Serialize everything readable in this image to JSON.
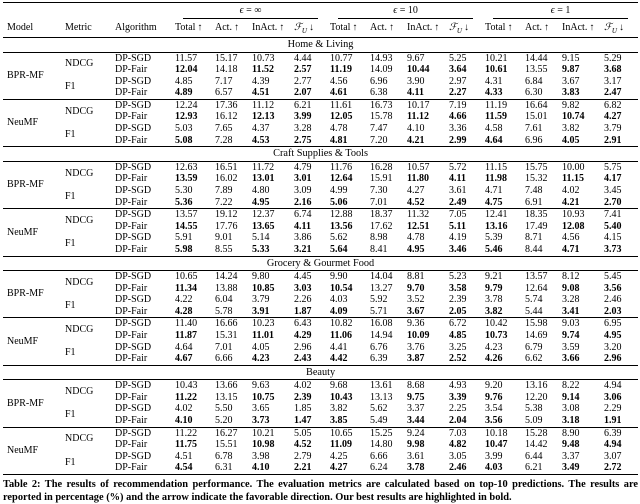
{
  "header": {
    "model": "Model",
    "metric": "Metric",
    "algorithm": "Algorithm",
    "groups": [
      {
        "symbol": "ϵ",
        "rest": "= ∞"
      },
      {
        "symbol": "ϵ",
        "rest": "= 10"
      },
      {
        "symbol": "ϵ",
        "rest": "= 1"
      }
    ],
    "sub_columns": [
      {
        "label": "Total",
        "arrow": "↑"
      },
      {
        "label": "Act.",
        "arrow": "↑"
      },
      {
        "label": "InAct.",
        "arrow": "↑"
      },
      {
        "label": "ℱ",
        "subscript": "U",
        "arrow": "↓"
      }
    ]
  },
  "sections": [
    {
      "title": "Home & Living",
      "rows": [
        {
          "model": "BPR-MF",
          "metric": "NDCG",
          "alg": "DP-SGD",
          "vals": [
            "11.57",
            "15.17",
            "10.73",
            "4.44",
            "10.77",
            "14.93",
            "9.67",
            "5.25",
            "10.21",
            "14.44",
            "9.15",
            "5.29"
          ]
        },
        {
          "alg": "DP-Fair",
          "bold": true,
          "vals": [
            "12.04",
            "14.18",
            "11.52",
            "2.57",
            "11.19",
            "14.09",
            "10.44",
            "3.64",
            "10.61",
            "13.55",
            "9.87",
            "3.68"
          ]
        },
        {
          "metric": "F1",
          "alg": "DP-SGD",
          "vals": [
            "4.85",
            "7.17",
            "4.39",
            "2.77",
            "4.56",
            "6.96",
            "3.90",
            "2.97",
            "4.31",
            "6.84",
            "3.67",
            "3.17"
          ]
        },
        {
          "alg": "DP-Fair",
          "bold": true,
          "vals": [
            "4.89",
            "6.57",
            "4.51",
            "2.07",
            "4.61",
            "6.38",
            "4.11",
            "2.27",
            "4.33",
            "6.30",
            "3.83",
            "2.47"
          ]
        },
        {
          "model": "NeuMF",
          "metric": "NDCG",
          "alg": "DP-SGD",
          "vals": [
            "12.24",
            "17.36",
            "11.12",
            "6.21",
            "11.61",
            "16.73",
            "10.17",
            "7.19",
            "11.19",
            "16.64",
            "9.82",
            "6.82"
          ]
        },
        {
          "alg": "DP-Fair",
          "bold": true,
          "vals": [
            "12.93",
            "16.12",
            "12.13",
            "3.99",
            "12.05",
            "15.78",
            "11.12",
            "4.66",
            "11.59",
            "15.01",
            "10.74",
            "4.27"
          ]
        },
        {
          "metric": "F1",
          "alg": "DP-SGD",
          "vals": [
            "5.03",
            "7.65",
            "4.37",
            "3.28",
            "4.78",
            "7.47",
            "4.10",
            "3.36",
            "4.58",
            "7.61",
            "3.82",
            "3.79"
          ]
        },
        {
          "alg": "DP-Fair",
          "bold": true,
          "vals": [
            "5.08",
            "7.28",
            "4.53",
            "2.75",
            "4.81",
            "7.20",
            "4.21",
            "2.99",
            "4.64",
            "6.96",
            "4.05",
            "2.91"
          ]
        }
      ]
    },
    {
      "title": "Craft Supplies & Tools",
      "rows": [
        {
          "model": "BPR-MF",
          "metric": "NDCG",
          "alg": "DP-SGD",
          "vals": [
            "12.63",
            "16.51",
            "11.72",
            "4.79",
            "11.76",
            "16.28",
            "10.57",
            "5.72",
            "11.15",
            "15.75",
            "10.00",
            "5.75"
          ]
        },
        {
          "alg": "DP-Fair",
          "bold": true,
          "vals": [
            "13.59",
            "16.02",
            "13.01",
            "3.01",
            "12.64",
            "15.91",
            "11.80",
            "4.11",
            "11.98",
            "15.32",
            "11.15",
            "4.17"
          ]
        },
        {
          "metric": "F1",
          "alg": "DP-SGD",
          "vals": [
            "5.30",
            "7.89",
            "4.80",
            "3.09",
            "4.99",
            "7.30",
            "4.27",
            "3.61",
            "4.71",
            "7.48",
            "4.02",
            "3.45"
          ]
        },
        {
          "alg": "DP-Fair",
          "bold": true,
          "vals": [
            "5.36",
            "7.22",
            "4.95",
            "2.16",
            "5.06",
            "7.01",
            "4.52",
            "2.49",
            "4.75",
            "6.91",
            "4.21",
            "2.70"
          ]
        },
        {
          "model": "NeuMF",
          "metric": "NDCG",
          "alg": "DP-SGD",
          "vals": [
            "13.57",
            "19.12",
            "12.37",
            "6.74",
            "12.88",
            "18.37",
            "11.32",
            "7.05",
            "12.41",
            "18.35",
            "10.93",
            "7.41"
          ]
        },
        {
          "alg": "DP-Fair",
          "bold": true,
          "vals": [
            "14.55",
            "17.76",
            "13.65",
            "4.11",
            "13.56",
            "17.62",
            "12.51",
            "5.11",
            "13.16",
            "17.49",
            "12.08",
            "5.40"
          ]
        },
        {
          "metric": "F1",
          "alg": "DP-SGD",
          "vals": [
            "5.91",
            "9.01",
            "5.14",
            "3.86",
            "5.62",
            "8.98",
            "4.78",
            "4.19",
            "5.39",
            "8.71",
            "4.56",
            "4.15"
          ]
        },
        {
          "alg": "DP-Fair",
          "bold": true,
          "vals": [
            "5.98",
            "8.55",
            "5.33",
            "3.21",
            "5.64",
            "8.41",
            "4.95",
            "3.46",
            "5.46",
            "8.44",
            "4.71",
            "3.73"
          ]
        }
      ]
    },
    {
      "title": "Grocery & Gourmet Food",
      "rows": [
        {
          "model": "BPR-MF",
          "metric": "NDCG",
          "alg": "DP-SGD",
          "vals": [
            "10.65",
            "14.24",
            "9.80",
            "4.45",
            "9.90",
            "14.04",
            "8.81",
            "5.23",
            "9.21",
            "13.57",
            "8.12",
            "5.45"
          ]
        },
        {
          "alg": "DP-Fair",
          "bold": true,
          "vals": [
            "11.34",
            "13.88",
            "10.85",
            "3.03",
            "10.54",
            "13.27",
            "9.70",
            "3.58",
            "9.79",
            "12.64",
            "9.08",
            "3.56"
          ]
        },
        {
          "metric": "F1",
          "alg": "DP-SGD",
          "vals": [
            "4.22",
            "6.04",
            "3.79",
            "2.26",
            "4.03",
            "5.92",
            "3.52",
            "2.39",
            "3.78",
            "5.74",
            "3.28",
            "2.46"
          ]
        },
        {
          "alg": "DP-Fair",
          "bold": true,
          "vals": [
            "4.28",
            "5.78",
            "3.91",
            "1.87",
            "4.09",
            "5.71",
            "3.67",
            "2.05",
            "3.82",
            "5.44",
            "3.41",
            "2.03"
          ]
        },
        {
          "model": "NeuMF",
          "metric": "NDCG",
          "alg": "DP-SGD",
          "vals": [
            "11.40",
            "16.66",
            "10.23",
            "6.43",
            "10.82",
            "16.08",
            "9.36",
            "6.72",
            "10.42",
            "15.98",
            "9.03",
            "6.95"
          ]
        },
        {
          "alg": "DP-Fair",
          "bold": true,
          "vals": [
            "11.87",
            "15.31",
            "11.01",
            "4.29",
            "11.06",
            "14.94",
            "10.09",
            "4.85",
            "10.73",
            "14.69",
            "9.74",
            "4.95"
          ]
        },
        {
          "metric": "F1",
          "alg": "DP-SGD",
          "vals": [
            "4.64",
            "7.01",
            "4.05",
            "2.96",
            "4.41",
            "6.76",
            "3.76",
            "3.25",
            "4.23",
            "6.79",
            "3.59",
            "3.20"
          ]
        },
        {
          "alg": "DP-Fair",
          "bold": true,
          "vals": [
            "4.67",
            "6.66",
            "4.23",
            "2.43",
            "4.42",
            "6.39",
            "3.87",
            "2.52",
            "4.26",
            "6.62",
            "3.66",
            "2.96"
          ]
        }
      ]
    },
    {
      "title": "Beauty",
      "rows": [
        {
          "model": "BPR-MF",
          "metric": "NDCG",
          "alg": "DP-SGD",
          "vals": [
            "10.43",
            "13.66",
            "9.63",
            "4.02",
            "9.68",
            "13.61",
            "8.68",
            "4.93",
            "9.20",
            "13.16",
            "8.22",
            "4.94"
          ]
        },
        {
          "alg": "DP-Fair",
          "bold": true,
          "vals": [
            "11.22",
            "13.15",
            "10.75",
            "2.39",
            "10.43",
            "13.13",
            "9.75",
            "3.39",
            "9.76",
            "12.20",
            "9.14",
            "3.06"
          ]
        },
        {
          "metric": "F1",
          "alg": "DP-SGD",
          "vals": [
            "4.02",
            "5.50",
            "3.65",
            "1.85",
            "3.82",
            "5.62",
            "3.37",
            "2.25",
            "3.54",
            "5.38",
            "3.08",
            "2.29"
          ]
        },
        {
          "alg": "DP-Fair",
          "bold": true,
          "vals": [
            "4.10",
            "5.20",
            "3.73",
            "1.47",
            "3.85",
            "5.49",
            "3.44",
            "2.04",
            "3.56",
            "5.09",
            "3.18",
            "1.91"
          ]
        },
        {
          "model": "NeuMF",
          "metric": "NDCG",
          "alg": "DP-SGD",
          "vals": [
            "11.22",
            "16.27",
            "10.21",
            "5.05",
            "10.65",
            "15.25",
            "9.24",
            "7.03",
            "10.18",
            "15.28",
            "8.90",
            "6.39"
          ]
        },
        {
          "alg": "DP-Fair",
          "bold": true,
          "vals": [
            "11.75",
            "15.51",
            "10.98",
            "4.52",
            "11.09",
            "14.80",
            "9.98",
            "4.82",
            "10.47",
            "14.42",
            "9.48",
            "4.94"
          ]
        },
        {
          "metric": "F1",
          "alg": "DP-SGD",
          "vals": [
            "4.51",
            "6.78",
            "3.98",
            "2.79",
            "4.25",
            "6.66",
            "3.61",
            "3.05",
            "3.99",
            "6.44",
            "3.37",
            "3.07"
          ]
        },
        {
          "alg": "DP-Fair",
          "bold": true,
          "vals": [
            "4.54",
            "6.31",
            "4.10",
            "2.21",
            "4.27",
            "6.24",
            "3.78",
            "2.46",
            "4.03",
            "6.21",
            "3.49",
            "2.72"
          ]
        }
      ]
    }
  ],
  "caption": {
    "label": "Table 2:",
    "text": "The results of recommendation performance. The evaluation metrics are calculated based on top-10 predictions. The results are reported in percentage (%) and the arrow indicate the favorable direction. Our best results are highlighted in bold."
  }
}
